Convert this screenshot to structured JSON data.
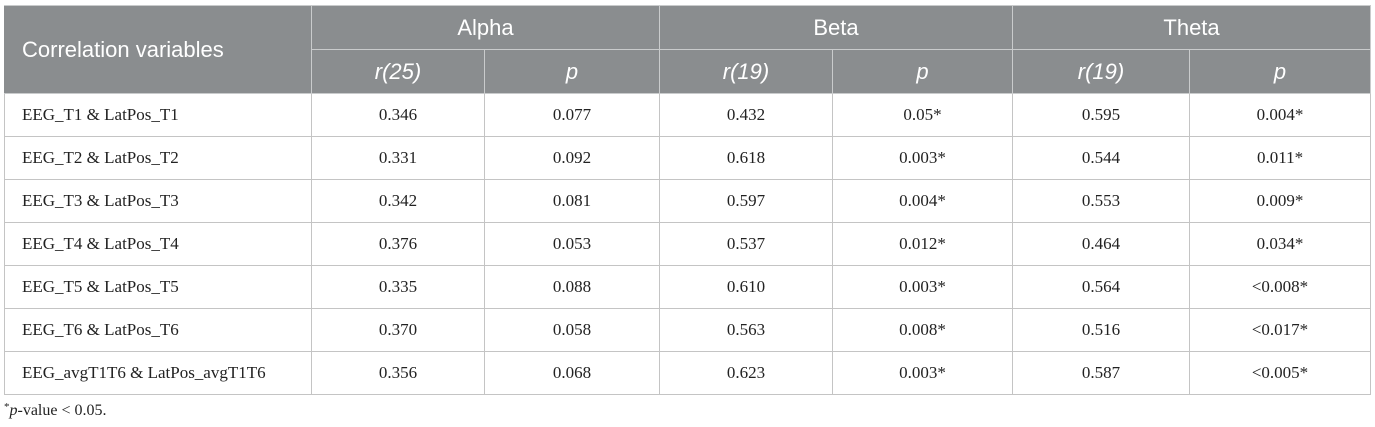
{
  "table": {
    "header": {
      "first_col": "Correlation variables",
      "groups": [
        "Alpha",
        "Beta",
        "Theta"
      ],
      "subheaders": [
        "r(25)",
        "p",
        "r(19)",
        "p",
        "r(19)",
        "p"
      ]
    },
    "rows": [
      [
        "EEG_T1 & LatPos_T1",
        "0.346",
        "0.077",
        "0.432",
        "0.05*",
        "0.595",
        "0.004*"
      ],
      [
        "EEG_T2 & LatPos_T2",
        "0.331",
        "0.092",
        "0.618",
        "0.003*",
        "0.544",
        "0.011*"
      ],
      [
        "EEG_T3 & LatPos_T3",
        "0.342",
        "0.081",
        "0.597",
        "0.004*",
        "0.553",
        "0.009*"
      ],
      [
        "EEG_T4 & LatPos_T4",
        "0.376",
        "0.053",
        "0.537",
        "0.012*",
        "0.464",
        "0.034*"
      ],
      [
        "EEG_T5 & LatPos_T5",
        "0.335",
        "0.088",
        "0.610",
        "0.003*",
        "0.564",
        "<0.008*"
      ],
      [
        "EEG_T6 & LatPos_T6",
        "0.370",
        "0.058",
        "0.563",
        "0.008*",
        "0.516",
        "<0.017*"
      ],
      [
        "EEG_avgT1T6 & LatPos_avgT1T6",
        "0.356",
        "0.068",
        "0.623",
        "0.003*",
        "0.587",
        "<0.005*"
      ]
    ]
  },
  "footnote": {
    "marker": "*",
    "italic": "p",
    "text": "-value < 0.05."
  },
  "colors": {
    "header_bg": "#8a8d8f",
    "header_text": "#ffffff",
    "border": "#c4c4c4"
  }
}
